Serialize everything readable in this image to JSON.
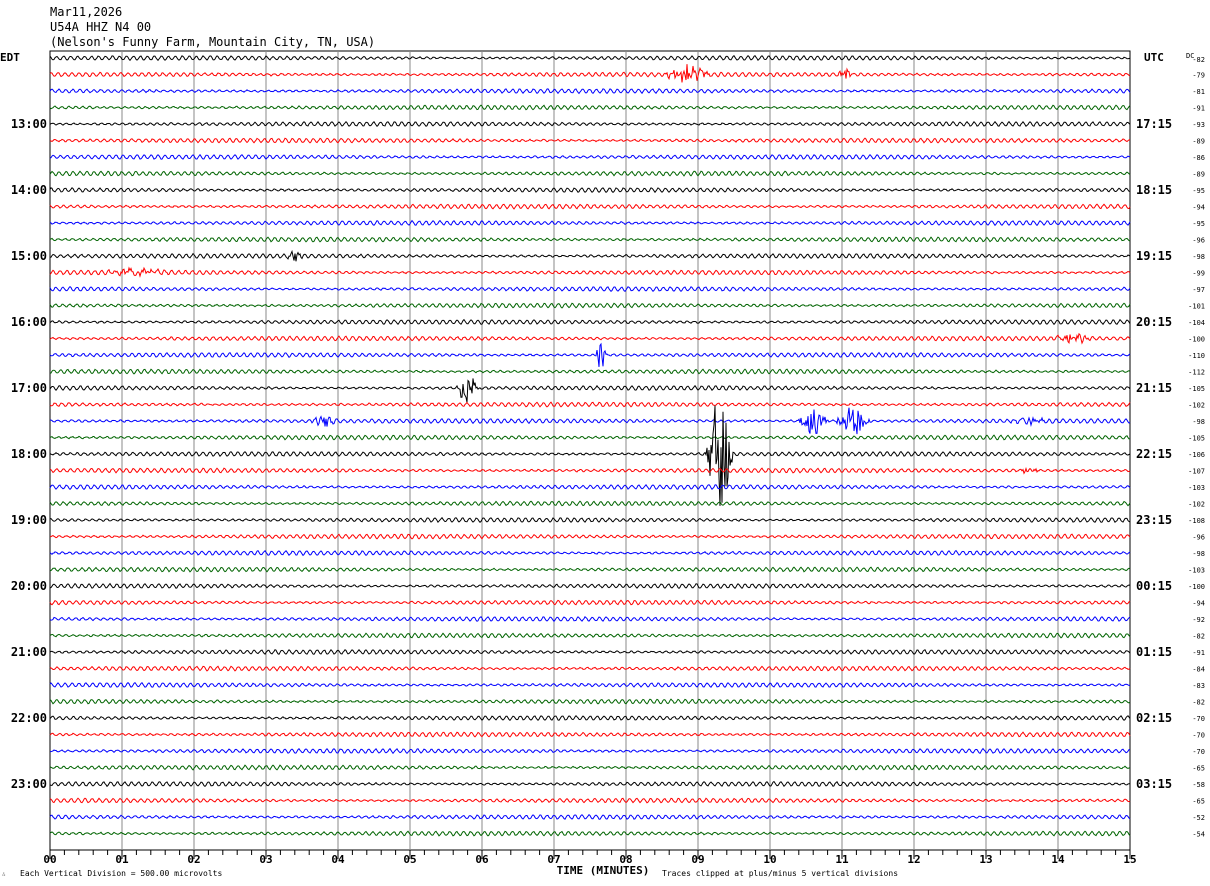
{
  "header": {
    "date": "Mar11,2026",
    "station": "U54A HHZ N4 00",
    "location": "(Nelson's Funny Farm, Mountain City, TN, USA)"
  },
  "chart_data": {
    "type": "line",
    "title": "U54A HHZ N4 00",
    "xlabel": "TIME (MINUTES)",
    "xlim": [
      0,
      15
    ],
    "x_ticks": [
      "00",
      "01",
      "02",
      "03",
      "04",
      "05",
      "06",
      "07",
      "08",
      "09",
      "10",
      "11",
      "12",
      "13",
      "14",
      "15"
    ],
    "left_axis_label": "EDT",
    "right_axis_label": "UTC",
    "dc_label": "DC",
    "left_hour_labels": [
      {
        "row": 4,
        "label": "13:00"
      },
      {
        "row": 8,
        "label": "14:00"
      },
      {
        "row": 12,
        "label": "15:00"
      },
      {
        "row": 16,
        "label": "16:00"
      },
      {
        "row": 20,
        "label": "17:00"
      },
      {
        "row": 24,
        "label": "18:00"
      },
      {
        "row": 28,
        "label": "19:00"
      },
      {
        "row": 32,
        "label": "20:00"
      },
      {
        "row": 36,
        "label": "21:00"
      },
      {
        "row": 40,
        "label": "22:00"
      },
      {
        "row": 44,
        "label": "23:00"
      }
    ],
    "right_hour_labels": [
      {
        "row": 4,
        "label": "17:15"
      },
      {
        "row": 8,
        "label": "18:15"
      },
      {
        "row": 12,
        "label": "19:15"
      },
      {
        "row": 16,
        "label": "20:15"
      },
      {
        "row": 20,
        "label": "21:15"
      },
      {
        "row": 24,
        "label": "22:15"
      },
      {
        "row": 28,
        "label": "23:15"
      },
      {
        "row": 32,
        "label": "00:15"
      },
      {
        "row": 36,
        "label": "01:15"
      },
      {
        "row": 40,
        "label": "02:15"
      },
      {
        "row": 44,
        "label": "03:15"
      }
    ],
    "dc_offsets": [
      -82,
      -79,
      -81,
      -91,
      -93,
      -89,
      -86,
      -89,
      -95,
      -94,
      -95,
      -96,
      -98,
      -99,
      -97,
      -101,
      -104,
      -100,
      -110,
      -112,
      -105,
      -102,
      -98,
      -105,
      -106,
      -107,
      -103,
      -102,
      -108,
      -96,
      -98,
      -103,
      -100,
      -94,
      -92,
      -82,
      -91,
      -84,
      -83,
      -82,
      -70,
      -70,
      -70,
      -65,
      -58,
      -65,
      -52,
      -54
    ],
    "trace_colors": [
      "#000000",
      "#ff0000",
      "#0000ff",
      "#006400"
    ],
    "events": [
      {
        "row": 1,
        "minute": 8.85,
        "duration": 0.6,
        "amplitude": 0.6
      },
      {
        "row": 1,
        "minute": 11.05,
        "duration": 0.15,
        "amplitude": 0.3
      },
      {
        "row": 12,
        "minute": 3.4,
        "duration": 0.15,
        "amplitude": 0.35
      },
      {
        "row": 13,
        "minute": 1.2,
        "duration": 0.9,
        "amplitude": 0.25
      },
      {
        "row": 17,
        "minute": 14.2,
        "duration": 0.5,
        "amplitude": 0.3
      },
      {
        "row": 18,
        "minute": 7.65,
        "duration": 0.05,
        "amplitude": 1.2
      },
      {
        "row": 20,
        "minute": 5.8,
        "duration": 0.25,
        "amplitude": 1.2
      },
      {
        "row": 22,
        "minute": 3.8,
        "duration": 0.3,
        "amplitude": 0.4
      },
      {
        "row": 22,
        "minute": 10.6,
        "duration": 0.35,
        "amplitude": 1.0
      },
      {
        "row": 22,
        "minute": 11.15,
        "duration": 0.4,
        "amplitude": 1.1
      },
      {
        "row": 22,
        "minute": 13.6,
        "duration": 0.5,
        "amplitude": 0.3
      },
      {
        "row": 24,
        "minute": 9.3,
        "duration": 0.3,
        "amplitude": 4.5
      },
      {
        "row": 25,
        "minute": 13.6,
        "duration": 0.2,
        "amplitude": 0.3
      }
    ],
    "footer_scale": "Each Vertical Division =  500.00 microvolts",
    "footer_clip": "Traces clipped at plus/minus 5 vertical divisions"
  }
}
